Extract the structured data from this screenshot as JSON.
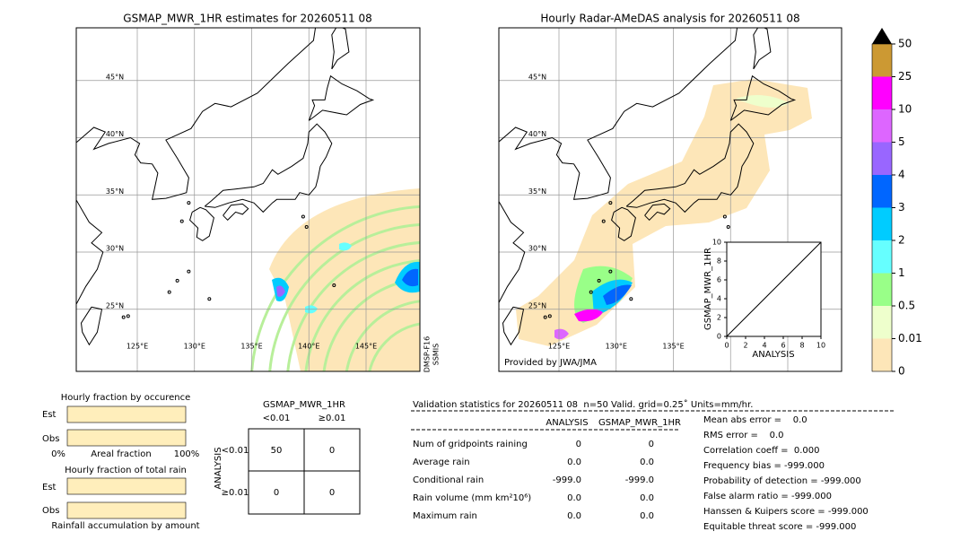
{
  "left_map": {
    "title": "GSMAP_MWR_1HR estimates for 20260511 08",
    "lat_labels": [
      "45°N",
      "40°N",
      "35°N",
      "30°N",
      "25°N"
    ],
    "lon_labels": [
      "125°E",
      "130°E",
      "135°E",
      "140°E",
      "145°E"
    ],
    "satellite": [
      "DMSP-F16",
      "SSMIS"
    ]
  },
  "right_map": {
    "title": "Hourly Radar-AMeDAS analysis for 20260511 08",
    "lat_labels": [
      "45°N",
      "40°N",
      "35°N",
      "30°N",
      "25°N"
    ],
    "lon_labels": [
      "125°E",
      "130°E",
      "135°E"
    ],
    "credit": "Provided by JWA/JMA"
  },
  "colorbar": {
    "ticks": [
      0,
      0.01,
      0.5,
      1,
      2,
      3,
      4,
      5,
      10,
      25,
      50
    ],
    "colors": [
      "#fde6b8",
      "#eeffcc",
      "#99ff88",
      "#66ffff",
      "#00ccff",
      "#0066ff",
      "#9966ff",
      "#dd66ff",
      "#ff00ff",
      "#cc9933"
    ],
    "over_color": "#000000"
  },
  "chart_data": {
    "type": "scatter",
    "xlabel": "ANALYSIS",
    "ylabel": "GSMAP_MWR_1HR",
    "x": [],
    "y": [],
    "xlim": [
      0,
      10
    ],
    "ylim": [
      0,
      10
    ],
    "xticks": [
      0,
      2,
      4,
      6,
      8,
      10
    ],
    "yticks": [
      0,
      2,
      4,
      6,
      8,
      10
    ]
  },
  "fraction": {
    "occurrence_title": "Hourly fraction by occurence",
    "occurrence_rows": [
      "Est",
      "Obs"
    ],
    "axis": [
      "0%",
      "Areal fraction",
      "100%"
    ],
    "total_title": "Hourly fraction of total rain",
    "total_rows": [
      "Est",
      "Obs"
    ],
    "footer": "Rainfall accumulation by amount"
  },
  "contingency": {
    "title": "GSMAP_MWR_1HR",
    "columns": [
      "<0.01",
      "≥0.01"
    ],
    "row_axis": "ANALYSIS",
    "rows": [
      {
        "label": "<0.01",
        "cells": [
          "50",
          "0"
        ]
      },
      {
        "label": "≥0.01",
        "cells": [
          "0",
          "0"
        ]
      }
    ]
  },
  "stats": {
    "header": "Validation statistics for 20260511 08  n=50 Valid. grid=0.25˚ Units=mm/hr.",
    "columns": [
      "ANALYSIS",
      "GSMAP_MWR_1HR"
    ],
    "rows": [
      {
        "label": "Num of gridpoints raining",
        "values": [
          "0",
          "0"
        ]
      },
      {
        "label": "Average rain",
        "values": [
          "0.0",
          "0.0"
        ]
      },
      {
        "label": "Conditional rain",
        "values": [
          "-999.0",
          "-999.0"
        ]
      },
      {
        "label": "Rain volume (mm km²10⁶)",
        "values": [
          "0.0",
          "0.0"
        ]
      },
      {
        "label": "Maximum rain",
        "values": [
          "0.0",
          "0.0"
        ]
      }
    ],
    "scores": [
      "Mean abs error =    0.0",
      "RMS error =    0.0",
      "Correlation coeff =  0.000",
      "Frequency bias = -999.000",
      "Probability of detection = -999.000",
      "False alarm ratio = -999.000",
      "Hanssen & Kuipers score = -999.000",
      "Equitable threat score = -999.000"
    ]
  }
}
